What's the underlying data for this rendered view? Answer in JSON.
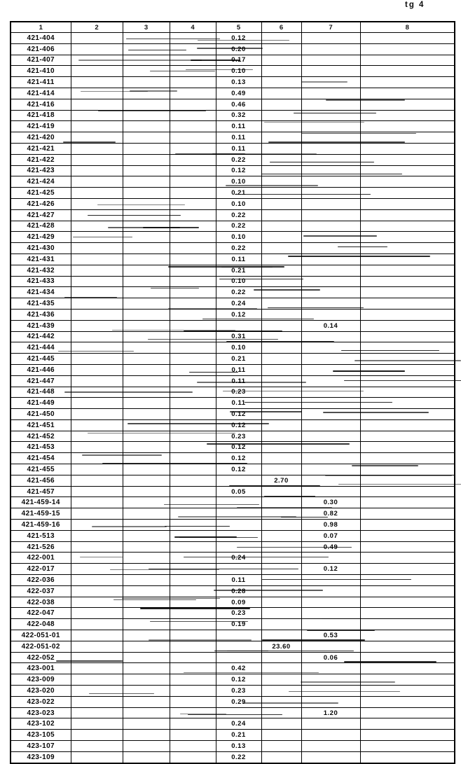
{
  "page_label": "tg 4",
  "colors": {
    "ink": "#111111",
    "paper": "#ffffff"
  },
  "table": {
    "columns": [
      "1",
      "2",
      "3",
      "4",
      "5",
      "6",
      "7",
      "8"
    ],
    "rows": [
      {
        "label": "421-404",
        "col": 5,
        "value": "0.12"
      },
      {
        "label": "421-406",
        "col": 5,
        "value": "0.20"
      },
      {
        "label": "421-407",
        "col": 5,
        "value": "0.17"
      },
      {
        "label": "421-410",
        "col": 5,
        "value": "0.10"
      },
      {
        "label": "421-411",
        "col": 5,
        "value": "0.13"
      },
      {
        "label": "421-414",
        "col": 5,
        "value": "0.49"
      },
      {
        "label": "421-416",
        "col": 5,
        "value": "0.46"
      },
      {
        "label": "421-418",
        "col": 5,
        "value": "0.32"
      },
      {
        "label": "421-419",
        "col": 5,
        "value": "0.11"
      },
      {
        "label": "421-420",
        "col": 5,
        "value": "0.11"
      },
      {
        "label": "421-421",
        "col": 5,
        "value": "0.11"
      },
      {
        "label": "421-422",
        "col": 5,
        "value": "0.22"
      },
      {
        "label": "421-423",
        "col": 5,
        "value": "0.12"
      },
      {
        "label": "421-424",
        "col": 5,
        "value": "0.10"
      },
      {
        "label": "421-425",
        "col": 5,
        "value": "0.21"
      },
      {
        "label": "421-426",
        "col": 5,
        "value": "0.10"
      },
      {
        "label": "421-427",
        "col": 5,
        "value": "0.22"
      },
      {
        "label": "421-428",
        "col": 5,
        "value": "0.22"
      },
      {
        "label": "421-429",
        "col": 5,
        "value": "0.10"
      },
      {
        "label": "421-430",
        "col": 5,
        "value": "0.22"
      },
      {
        "label": "421-431",
        "col": 5,
        "value": "0.11"
      },
      {
        "label": "421-432",
        "col": 5,
        "value": "0.21"
      },
      {
        "label": "421-433",
        "col": 5,
        "value": "0.10"
      },
      {
        "label": "421-434",
        "col": 5,
        "value": "0.22"
      },
      {
        "label": "421-435",
        "col": 5,
        "value": "0.24"
      },
      {
        "label": "421-436",
        "col": 5,
        "value": "0.12"
      },
      {
        "label": "421-439",
        "col": 7,
        "value": "0.14"
      },
      {
        "label": "421-442",
        "col": 5,
        "value": "0.31"
      },
      {
        "label": "421-444",
        "col": 5,
        "value": "0.10"
      },
      {
        "label": "421-445",
        "col": 5,
        "value": "0.21"
      },
      {
        "label": "421-446",
        "col": 5,
        "value": "0.11"
      },
      {
        "label": "421-447",
        "col": 5,
        "value": "0.11"
      },
      {
        "label": "421-448",
        "col": 5,
        "value": "0.23"
      },
      {
        "label": "421-449",
        "col": 5,
        "value": "0.11"
      },
      {
        "label": "421-450",
        "col": 5,
        "value": "0.12"
      },
      {
        "label": "421-451",
        "col": 5,
        "value": "0.12"
      },
      {
        "label": "421-452",
        "col": 5,
        "value": "0.23"
      },
      {
        "label": "421-453",
        "col": 5,
        "value": "0.12"
      },
      {
        "label": "421-454",
        "col": 5,
        "value": "0.12"
      },
      {
        "label": "421-455",
        "col": 5,
        "value": "0.12"
      },
      {
        "label": "421-456",
        "col": 6,
        "value": "2.70"
      },
      {
        "label": "421-457",
        "col": 5,
        "value": "0.05"
      },
      {
        "label": "421-459-14",
        "col": 7,
        "value": "0.30"
      },
      {
        "label": "421-459-15",
        "col": 7,
        "value": "0.82"
      },
      {
        "label": "421-459-16",
        "col": 7,
        "value": "0.98"
      },
      {
        "label": "421-513",
        "col": 7,
        "value": "0.07"
      },
      {
        "label": "421-526",
        "col": 7,
        "value": "0.49"
      },
      {
        "label": "422-001",
        "col": 5,
        "value": "0.24"
      },
      {
        "label": "422-017",
        "col": 7,
        "value": "0.12"
      },
      {
        "label": "422-036",
        "col": 5,
        "value": "0.11"
      },
      {
        "label": "422-037",
        "col": 5,
        "value": "0.28"
      },
      {
        "label": "422-038",
        "col": 5,
        "value": "0.09"
      },
      {
        "label": "422-047",
        "col": 5,
        "value": "0.23"
      },
      {
        "label": "422-048",
        "col": 5,
        "value": "0.19"
      },
      {
        "label": "422-051-01",
        "col": 7,
        "value": "0.53"
      },
      {
        "label": "422-051-02",
        "col": 6,
        "value": "23.60"
      },
      {
        "label": "422-052",
        "col": 7,
        "value": "0.06"
      },
      {
        "label": "423-001",
        "col": 5,
        "value": "0.42"
      },
      {
        "label": "423-009",
        "col": 5,
        "value": "0.12"
      },
      {
        "label": "423-020",
        "col": 5,
        "value": "0.23"
      },
      {
        "label": "423-022",
        "col": 5,
        "value": "0.29"
      },
      {
        "label": "423-023",
        "col": 7,
        "value": "1.20"
      },
      {
        "label": "423-102",
        "col": 5,
        "value": "0.24"
      },
      {
        "label": "423-105",
        "col": 5,
        "value": "0.21"
      },
      {
        "label": "423-107",
        "col": 5,
        "value": "0.13"
      },
      {
        "label": "423-109",
        "col": 5,
        "value": "0.22"
      }
    ]
  }
}
